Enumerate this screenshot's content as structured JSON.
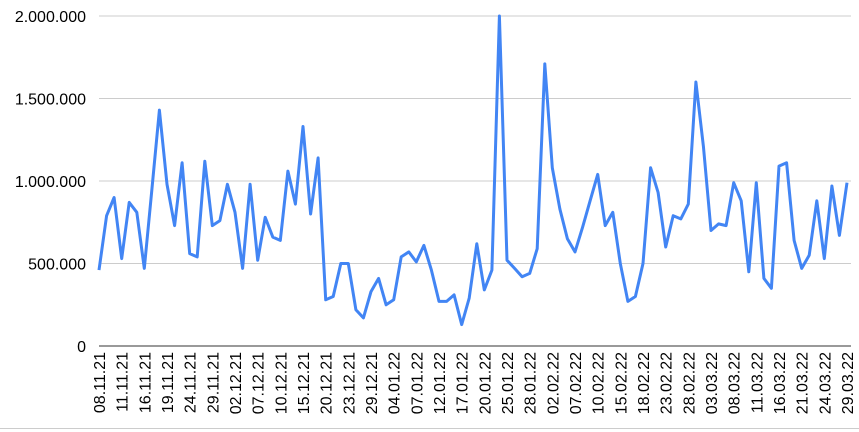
{
  "chart_data": {
    "type": "line",
    "categories": [
      "08.11.21",
      null,
      null,
      "11.11.21",
      null,
      null,
      "16.11.21",
      null,
      null,
      "19.11.21",
      null,
      null,
      "24.11.21",
      null,
      null,
      "29.11.21",
      null,
      null,
      "02.12.21",
      null,
      null,
      "07.12.21",
      null,
      null,
      "10.12.21",
      null,
      null,
      "15.12.21",
      null,
      null,
      "20.12.21",
      null,
      null,
      "23.12.21",
      null,
      null,
      "29.12.21",
      null,
      null,
      "04.01.22",
      null,
      null,
      "07.01.22",
      null,
      null,
      "12.01.22",
      null,
      null,
      "17.01.22",
      null,
      null,
      "20.01.22",
      null,
      null,
      "25.01.22",
      null,
      null,
      "28.01.22",
      null,
      null,
      "02.02.22",
      null,
      null,
      "07.02.22",
      null,
      null,
      "10.02.22",
      null,
      null,
      "15.02.22",
      null,
      null,
      "18.02.22",
      null,
      null,
      "23.02.22",
      null,
      null,
      "28.02.22",
      null,
      null,
      "03.03.22",
      null,
      null,
      "08.03.22",
      null,
      null,
      "11.03.22",
      null,
      null,
      "16.03.22",
      null,
      null,
      "21.03.22",
      null,
      null,
      "24.03.22",
      null,
      null,
      "29.03.22"
    ],
    "series": [
      {
        "color": "#4285f4",
        "values": [
          460000,
          790000,
          900000,
          530000,
          870000,
          810000,
          470000,
          950000,
          1430000,
          980000,
          730000,
          1110000,
          560000,
          540000,
          1120000,
          730000,
          760000,
          980000,
          810000,
          470000,
          980000,
          520000,
          780000,
          660000,
          640000,
          1060000,
          860000,
          1330000,
          800000,
          1140000,
          280000,
          300000,
          500000,
          500000,
          220000,
          170000,
          330000,
          410000,
          250000,
          280000,
          540000,
          570000,
          510000,
          610000,
          460000,
          270000,
          270000,
          310000,
          130000,
          290000,
          620000,
          340000,
          460000,
          2000000,
          520000,
          470000,
          420000,
          440000,
          590000,
          1710000,
          1080000,
          830000,
          650000,
          570000,
          720000,
          880000,
          1040000,
          730000,
          810000,
          500000,
          270000,
          300000,
          500000,
          1080000,
          930000,
          600000,
          790000,
          770000,
          860000,
          1600000,
          1210000,
          700000,
          740000,
          730000,
          990000,
          880000,
          450000,
          990000,
          410000,
          350000,
          1090000,
          1110000,
          640000,
          470000,
          550000,
          880000,
          530000,
          970000,
          670000,
          990000
        ]
      }
    ],
    "ylim": [
      0,
      2000000
    ],
    "yticks": [
      0,
      {
        "value": 500000,
        "label": "500.000"
      },
      {
        "value": 1000000,
        "label": "1.000.000"
      },
      {
        "value": 1500000,
        "label": "1.500.000"
      },
      {
        "value": 2000000,
        "label": "2.000.000"
      }
    ],
    "grid": true
  }
}
